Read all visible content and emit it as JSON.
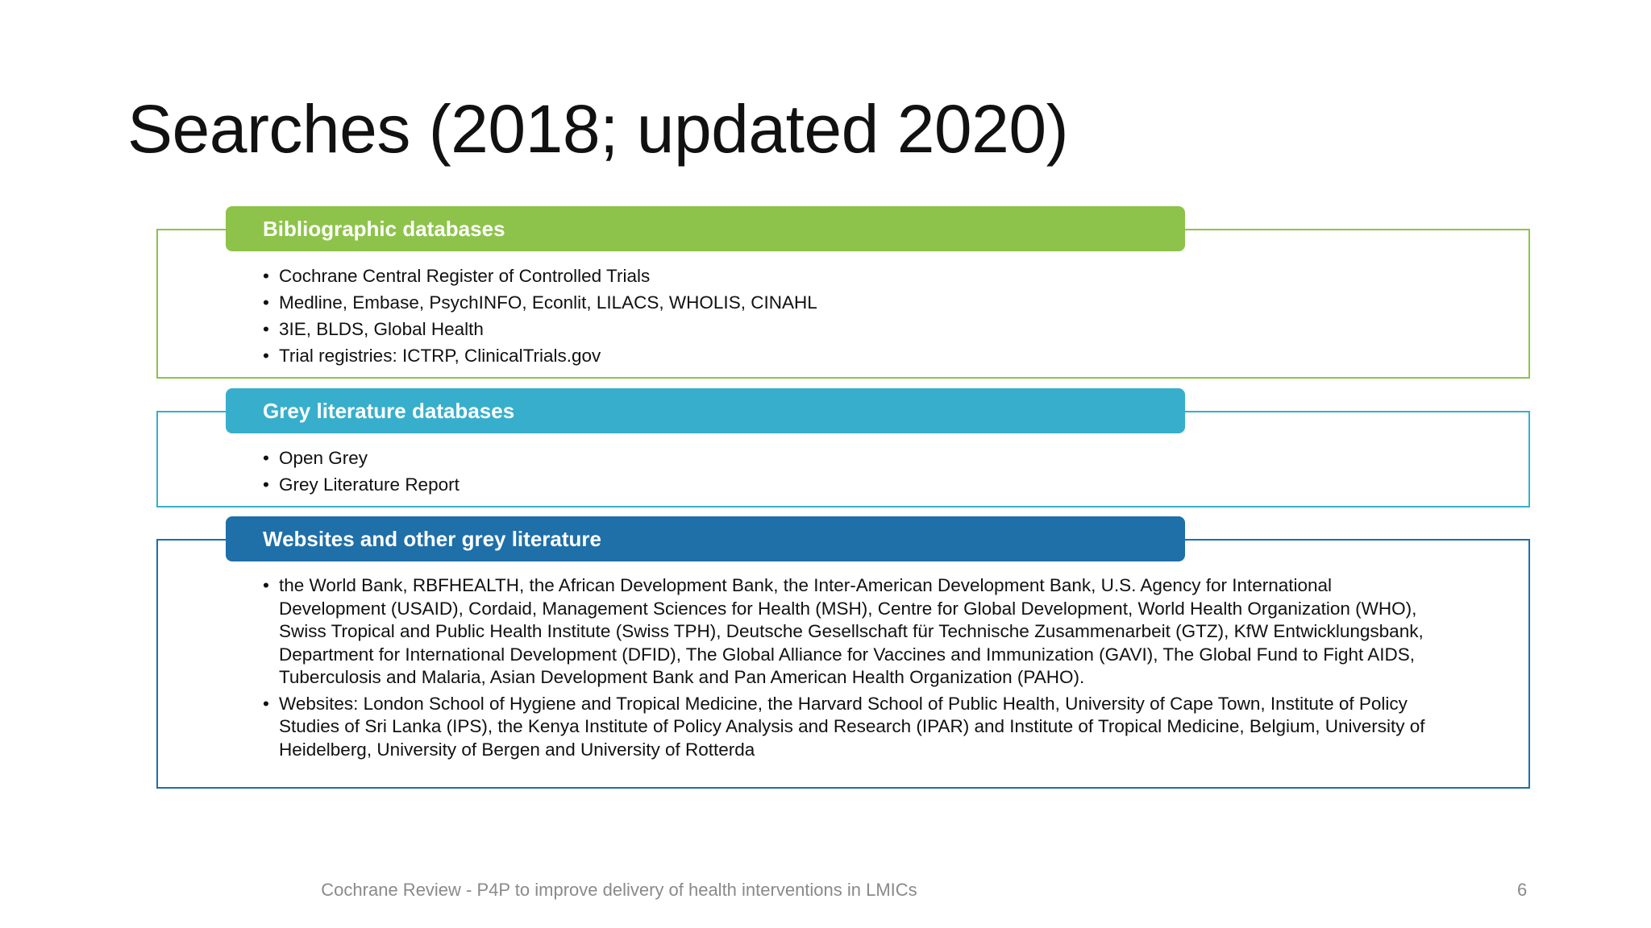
{
  "slide": {
    "title": "Searches (2018; updated 2020)",
    "footer": "Cochrane Review - P4P to improve delivery of health interventions in LMICs",
    "page_number": "6"
  },
  "colors": {
    "group1": "#8DC34A",
    "group2": "#37AFCC",
    "group3": "#1F6FA8"
  },
  "groups": [
    {
      "heading": "Bibliographic databases",
      "items": [
        "Cochrane Central Register of Controlled Trials",
        "Medline, Embase, PsychINFO, Econlit, LILACS, WHOLIS, CINAHL",
        "3IE, BLDS, Global Health",
        "Trial registries: ICTRP, ClinicalTrials.gov"
      ]
    },
    {
      "heading": "Grey literature databases",
      "items": [
        "Open Grey",
        "Grey Literature Report"
      ]
    },
    {
      "heading": "Websites and other grey literature",
      "items": [
        "the World Bank, RBFHEALTH, the African Development Bank, the Inter-American Development Bank, U.S. Agency for International Development (USAID), Cordaid, Management Sciences for Health (MSH), Centre for Global Development, World Health Organization (WHO), Swiss Tropical and Public Health Institute (Swiss TPH), Deutsche Gesellschaft für Technische Zusammenarbeit (GTZ), KfW Entwicklungsbank, Department for International Development (DFID), The Global Alliance for Vaccines and Immunization (GAVI), The Global Fund to Fight AIDS, Tuberculosis and Malaria, Asian Development Bank and Pan American Health Organization (PAHO).",
        "Websites:  London School of Hygiene and Tropical Medicine, the Harvard School of Public Health, University of Cape Town, Institute of Policy Studies of Sri Lanka (IPS), the Kenya Institute of Policy Analysis and Research (IPAR) and Institute of Tropical Medicine, Belgium, University of Heidelberg, University of Bergen and University of Rotterda"
      ]
    }
  ]
}
